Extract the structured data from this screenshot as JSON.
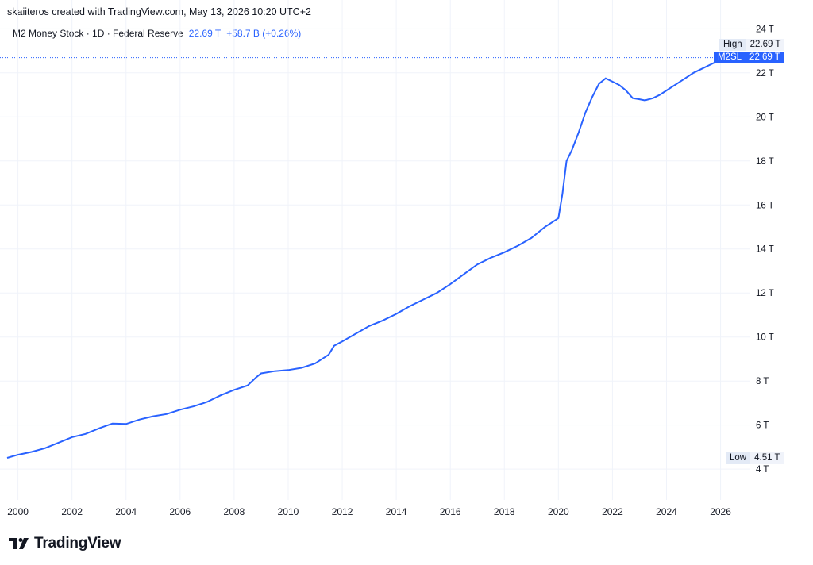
{
  "caption": "skaiiteros created with TradingView.com, May 13, 2026 10:20 UTC+2",
  "legend": {
    "name": "M2 Money Stock · 1D · Federal Reserve",
    "value": "22.69 T",
    "change": "+58.7 B (+0.26%)"
  },
  "tags": {
    "high_label": "High",
    "high_value": "22.69 T",
    "symbol_label": "M2SL",
    "symbol_value": "22.69 T",
    "low_label": "Low",
    "low_value": "4.51 T"
  },
  "logo_text": "TradingView",
  "colors": {
    "line": "#2962ff",
    "accent": "#2962ff",
    "grid": "#f0f3fa"
  },
  "chart_data": {
    "type": "line",
    "title": "M2 Money Stock · 1D · Federal Reserve",
    "xlabel": "",
    "ylabel": "",
    "xlim": [
      1999.6,
      2027.1
    ],
    "ylim": [
      2.6,
      24.3
    ],
    "y_ticks": [
      "4 T",
      "6 T",
      "8 T",
      "10 T",
      "12 T",
      "14 T",
      "16 T",
      "18 T",
      "20 T",
      "22 T",
      "24 T"
    ],
    "y_tick_values": [
      4,
      6,
      8,
      10,
      12,
      14,
      16,
      18,
      20,
      22,
      24
    ],
    "x_ticks": [
      "2000",
      "2002",
      "2004",
      "2006",
      "2008",
      "2010",
      "2012",
      "2014",
      "2016",
      "2018",
      "2020",
      "2022",
      "2024",
      "2026"
    ],
    "x_tick_values": [
      2000,
      2002,
      2004,
      2006,
      2008,
      2010,
      2012,
      2014,
      2016,
      2018,
      2020,
      2022,
      2024,
      2026
    ],
    "grid": true,
    "series": [
      {
        "name": "M2SL",
        "x": [
          1999.6,
          2000.0,
          2000.5,
          2001.0,
          2001.5,
          2002.0,
          2002.5,
          2003.0,
          2003.5,
          2004.0,
          2004.5,
          2005.0,
          2005.5,
          2006.0,
          2006.5,
          2007.0,
          2007.5,
          2008.0,
          2008.5,
          2008.8,
          2009.0,
          2009.5,
          2010.0,
          2010.5,
          2011.0,
          2011.5,
          2011.7,
          2012.0,
          2012.5,
          2013.0,
          2013.5,
          2014.0,
          2014.5,
          2015.0,
          2015.5,
          2016.0,
          2016.5,
          2017.0,
          2017.5,
          2018.0,
          2018.5,
          2019.0,
          2019.5,
          2020.0,
          2020.15,
          2020.3,
          2020.5,
          2020.75,
          2021.0,
          2021.25,
          2021.5,
          2021.75,
          2022.0,
          2022.25,
          2022.5,
          2022.75,
          2023.0,
          2023.2,
          2023.5,
          2023.75,
          2024.0,
          2024.5,
          2025.0,
          2025.5,
          2026.0,
          2026.35
        ],
        "values": [
          4.51,
          4.65,
          4.78,
          4.95,
          5.2,
          5.45,
          5.6,
          5.85,
          6.07,
          6.05,
          6.25,
          6.4,
          6.5,
          6.7,
          6.85,
          7.05,
          7.35,
          7.6,
          7.8,
          8.15,
          8.35,
          8.45,
          8.5,
          8.6,
          8.8,
          9.2,
          9.6,
          9.8,
          10.15,
          10.5,
          10.75,
          11.05,
          11.4,
          11.7,
          12.0,
          12.4,
          12.85,
          13.3,
          13.6,
          13.85,
          14.15,
          14.5,
          15.0,
          15.4,
          16.5,
          18.0,
          18.5,
          19.3,
          20.2,
          20.9,
          21.5,
          21.75,
          21.6,
          21.45,
          21.2,
          20.85,
          20.8,
          20.75,
          20.85,
          21.0,
          21.2,
          21.6,
          22.0,
          22.3,
          22.6,
          22.69
        ]
      }
    ],
    "high": 22.69,
    "low": 4.51,
    "last": 22.69
  }
}
